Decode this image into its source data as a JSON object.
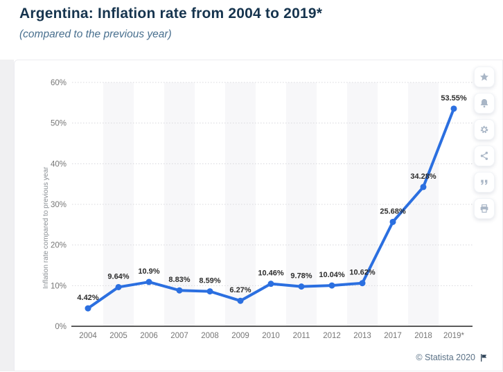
{
  "page": {
    "title": "Argentina: Inflation rate from 2004 to 2019*",
    "subtitle": "(compared to the previous year)",
    "footer": "© Statista 2020"
  },
  "toolbar": {
    "icons": [
      "favorite-star",
      "notification-bell",
      "settings-gear",
      "share",
      "citation-quote",
      "print"
    ]
  },
  "chart_data": {
    "type": "line",
    "title": "Argentina: Inflation rate from 2004 to 2019*",
    "subtitle": "(compared to the previous year)",
    "categories": [
      "2004",
      "2005",
      "2006",
      "2007",
      "2008",
      "2009",
      "2010",
      "2011",
      "2012",
      "2013",
      "2017",
      "2018",
      "2019*"
    ],
    "values": [
      4.42,
      9.64,
      10.9,
      8.83,
      8.59,
      6.27,
      10.46,
      9.78,
      10.04,
      10.62,
      25.68,
      34.28,
      53.55
    ],
    "point_labels": [
      "4.42%",
      "9.64%",
      "10.9%",
      "8.83%",
      "8.59%",
      "6.27%",
      "10.46%",
      "9.78%",
      "10.04%",
      "10.62%",
      "25.68%",
      "34.28%",
      "53.55%"
    ],
    "xlabel": "",
    "ylabel": "Inflation rate compared to previous year",
    "ylim": [
      0,
      60
    ],
    "yticks": [
      0,
      10,
      20,
      30,
      40,
      50,
      60
    ],
    "ytick_labels": [
      "0%",
      "10%",
      "20%",
      "30%",
      "40%",
      "50%",
      "60%"
    ],
    "grid": true,
    "legend_position": "none",
    "line_color": "#2b6fe0",
    "point_color": "#2b6fe0",
    "band_color": "#f7f7f9",
    "grid_color": "#d8d8dc",
    "axis_color": "#5a5a5a",
    "label_color": "#2b2b2b",
    "tick_color": "#767676"
  }
}
